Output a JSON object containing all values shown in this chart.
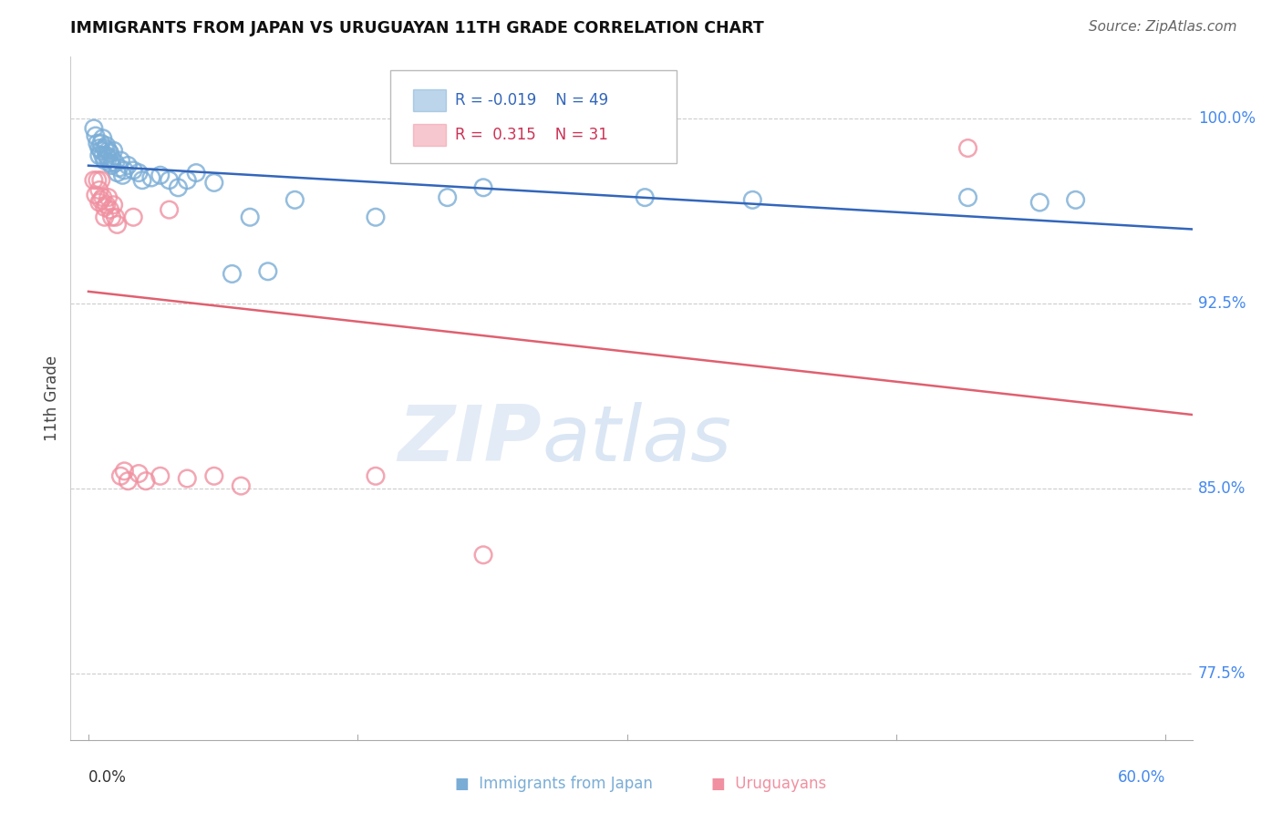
{
  "title": "IMMIGRANTS FROM JAPAN VS URUGUAYAN 11TH GRADE CORRELATION CHART",
  "source": "Source: ZipAtlas.com",
  "ylabel": "11th Grade",
  "ytick_vals": [
    0.775,
    0.85,
    0.925,
    1.0
  ],
  "ytick_labels": [
    "77.5%",
    "85.0%",
    "92.5%",
    "100.0%"
  ],
  "xtick_positions": [
    0.0,
    0.15,
    0.3,
    0.45,
    0.6
  ],
  "xlim": [
    -0.01,
    0.615
  ],
  "ylim": [
    0.748,
    1.025
  ],
  "legend_blue_r": "-0.019",
  "legend_blue_n": "49",
  "legend_pink_r": "0.315",
  "legend_pink_n": "31",
  "blue_color": "#7AADD6",
  "pink_color": "#F090A0",
  "blue_line_color": "#3366BB",
  "pink_line_color": "#E06070",
  "watermark_zip": "ZIP",
  "watermark_atlas": "atlas",
  "blue_x": [
    0.003,
    0.004,
    0.005,
    0.006,
    0.006,
    0.007,
    0.007,
    0.008,
    0.008,
    0.009,
    0.009,
    0.01,
    0.01,
    0.011,
    0.011,
    0.012,
    0.012,
    0.013,
    0.013,
    0.014,
    0.015,
    0.016,
    0.017,
    0.018,
    0.019,
    0.02,
    0.022,
    0.025,
    0.028,
    0.03,
    0.035,
    0.04,
    0.045,
    0.05,
    0.055,
    0.06,
    0.07,
    0.08,
    0.09,
    0.1,
    0.115,
    0.16,
    0.2,
    0.22,
    0.31,
    0.37,
    0.49,
    0.53,
    0.55
  ],
  "blue_y": [
    0.996,
    0.993,
    0.99,
    0.988,
    0.985,
    0.99,
    0.987,
    0.985,
    0.992,
    0.983,
    0.988,
    0.985,
    0.989,
    0.984,
    0.987,
    0.982,
    0.986,
    0.981,
    0.984,
    0.987,
    0.982,
    0.978,
    0.98,
    0.983,
    0.977,
    0.979,
    0.981,
    0.979,
    0.978,
    0.975,
    0.976,
    0.977,
    0.975,
    0.972,
    0.975,
    0.978,
    0.974,
    0.937,
    0.96,
    0.938,
    0.967,
    0.96,
    0.968,
    0.972,
    0.968,
    0.967,
    0.968,
    0.966,
    0.967
  ],
  "pink_x": [
    0.003,
    0.004,
    0.005,
    0.006,
    0.006,
    0.007,
    0.007,
    0.008,
    0.009,
    0.009,
    0.01,
    0.011,
    0.012,
    0.013,
    0.014,
    0.015,
    0.016,
    0.018,
    0.02,
    0.022,
    0.025,
    0.028,
    0.032,
    0.04,
    0.045,
    0.055,
    0.07,
    0.085,
    0.16,
    0.22,
    0.49
  ],
  "pink_y": [
    0.975,
    0.969,
    0.975,
    0.971,
    0.966,
    0.975,
    0.967,
    0.968,
    0.964,
    0.96,
    0.965,
    0.968,
    0.963,
    0.96,
    0.965,
    0.96,
    0.957,
    0.855,
    0.857,
    0.853,
    0.96,
    0.856,
    0.853,
    0.855,
    0.963,
    0.854,
    0.855,
    0.851,
    0.855,
    0.823,
    0.988
  ]
}
